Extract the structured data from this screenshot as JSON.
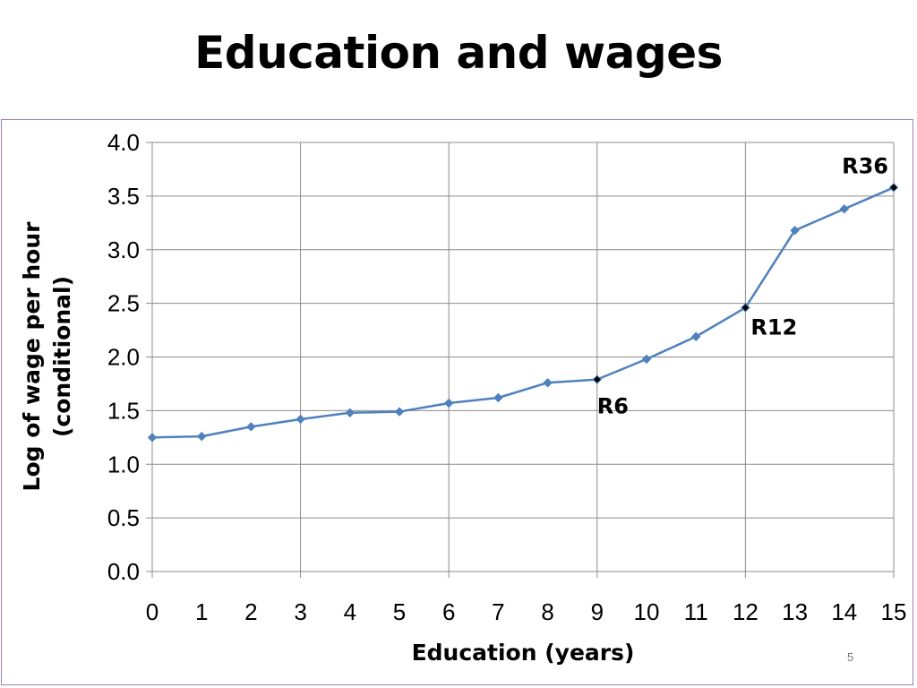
{
  "slide": {
    "title": "Education and wages",
    "page_number": "5"
  },
  "chart_data": {
    "type": "line",
    "xlabel": "Education (years)",
    "ylabel": "Log of wage per hour (conditional)",
    "ylabel_lines": [
      "Log of wage per hour",
      "(conditional)"
    ],
    "x": [
      0,
      1,
      2,
      3,
      4,
      5,
      6,
      7,
      8,
      9,
      10,
      11,
      12,
      13,
      14,
      15
    ],
    "series": [
      {
        "values": [
          1.25,
          1.26,
          1.35,
          1.42,
          1.48,
          1.49,
          1.57,
          1.62,
          1.76,
          1.79,
          1.98,
          2.19,
          2.46,
          3.18,
          3.38,
          3.58
        ],
        "color": "#4f81bd",
        "marker": "diamond"
      }
    ],
    "xlim": [
      0,
      15
    ],
    "ylim": [
      0,
      4.0
    ],
    "yticks": [
      "0.0",
      "0.5",
      "1.0",
      "1.5",
      "2.0",
      "2.5",
      "3.0",
      "3.5",
      "4.0"
    ],
    "xticks": [
      "0",
      "1",
      "2",
      "3",
      "4",
      "5",
      "6",
      "7",
      "8",
      "9",
      "10",
      "11",
      "12",
      "13",
      "14",
      "15"
    ],
    "grid": true,
    "annotations": [
      {
        "text": "R6",
        "x": 9,
        "y": 1.79,
        "marker_color": "#000000"
      },
      {
        "text": "R12",
        "x": 12,
        "y": 2.46,
        "marker_color": "#000000"
      },
      {
        "text": "R36",
        "x": 15,
        "y": 3.58,
        "marker_color": "#000000"
      }
    ]
  }
}
